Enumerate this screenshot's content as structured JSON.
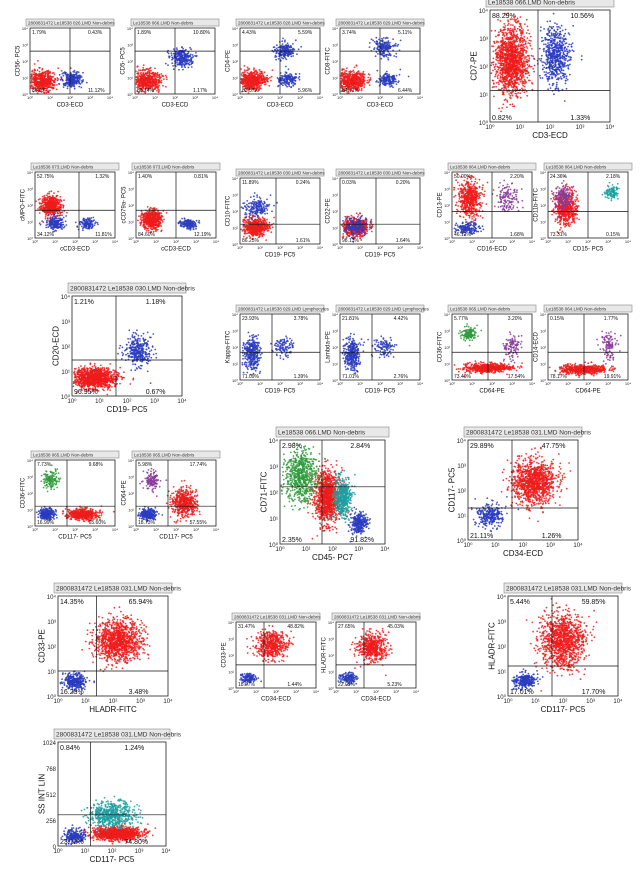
{
  "chart_data": [
    {
      "type": "scatter",
      "title": "2800831472 Le18538 026.LMD  Non-debris",
      "xlabel": "CD3-ECD",
      "ylabel": "CD56- PC5",
      "quadrants": [
        "1.79%",
        "0.43%",
        "86.67%",
        "11.12%"
      ]
    },
    {
      "type": "scatter",
      "title": "Le18538 066.LMD  Non-debris",
      "xlabel": "CD3-ECD",
      "ylabel": "CD5- PC5",
      "quadrants": [
        "1.89%",
        "10.80%",
        "86.14%",
        "1.17%"
      ]
    },
    {
      "type": "scatter",
      "title": "2800831472 Le18538 028.LMD  Non-debris",
      "xlabel": "CD3-ECD",
      "ylabel": "CD4-PE",
      "quadrants": [
        "4.43%",
        "5.59%",
        "83.57%",
        "5.96%"
      ]
    },
    {
      "type": "scatter",
      "title": "2800831472 Le18538 029.LMD  Non-debris",
      "xlabel": "CD3-ECD",
      "ylabel": "CD8-FITC",
      "quadrants": [
        "3.74%",
        "5.11%",
        "84.71%",
        "6.44%"
      ]
    },
    {
      "type": "scatter",
      "title": "Le18538 066.LMD  Non-debris",
      "xlabel": "CD3-ECD",
      "ylabel": "CD7-PE",
      "quadrants": [
        "88.29%",
        "10.56%",
        "0.82%",
        "1.33%"
      ]
    },
    {
      "type": "scatter",
      "title": "Le18538 073.LMD  Non-debris",
      "xlabel": "cCD3-ECD",
      "ylabel": "cMPO-FITC",
      "quadrants": [
        "52.75%",
        "1.32%",
        "34.12%",
        "11.81%"
      ]
    },
    {
      "type": "scatter",
      "title": "Le18538 073.LMD  Non-debris",
      "xlabel": "cCD3-ECD",
      "ylabel": "cCD79a- PC5",
      "quadrants": [
        "1.40%",
        "0.81%",
        "84.60%",
        "12.19%"
      ]
    },
    {
      "type": "scatter",
      "title": "2800831472 Le18538 030.LMD  Non-debris",
      "xlabel": "CD19- PC5",
      "ylabel": "CD10-FITC",
      "quadrants": [
        "11.89%",
        "0.24%",
        "86.25%",
        "1.61%"
      ]
    },
    {
      "type": "scatter",
      "title": "2800831472 Le18538 030.LMD  Non-debris",
      "xlabel": "CD19- PC5",
      "ylabel": "CD22-PE",
      "quadrants": [
        "0.03%",
        "0.20%",
        "98.13%",
        "1.64%"
      ]
    },
    {
      "type": "scatter",
      "title": "Le18538 064.LMD  Non-debris",
      "xlabel": "CD16-ECD",
      "ylabel": "CD13-PE",
      "quadrants": [
        "50.00%",
        "2.20%",
        "46.12%",
        "1.68%"
      ]
    },
    {
      "type": "scatter",
      "title": "Le18538 064.LMD  Non-debris",
      "xlabel": "CD15- PC5",
      "ylabel": "CD11b-FITC",
      "quadrants": [
        "24.36%",
        "2.18%",
        "73.31%",
        "0.15%"
      ]
    },
    {
      "type": "scatter",
      "title": "2800831472 Le18538 030.LMD  Non-debris",
      "xlabel": "CD19- PC5",
      "ylabel": "CD20-ECD",
      "quadrants": [
        "1.21%",
        "1.18%",
        "96.95%",
        "0.67%"
      ]
    },
    {
      "type": "scatter",
      "title": "2800831472 Le18538 029.LMD  Lymphocytes",
      "xlabel": "CD19- PC5",
      "ylabel": "Kappa-FITC",
      "quadrants": [
        "23.93%",
        "3.78%",
        "71.09%",
        "1.39%"
      ]
    },
    {
      "type": "scatter",
      "title": "2800831472 Le18538 029.LMD  Lymphocytes",
      "xlabel": "CD19- PC5",
      "ylabel": "Lambda-PE",
      "quadrants": [
        "21.81%",
        "4.42%",
        "71.01%",
        "2.76%"
      ]
    },
    {
      "type": "scatter",
      "title": "Le18538 065.LMD  Non-debris",
      "xlabel": "CD64-PE",
      "ylabel": "CD36-FITC",
      "quadrants": [
        "5.77%",
        "3.20%",
        "73.49%",
        "17.54%"
      ]
    },
    {
      "type": "scatter",
      "title": "Le18538 064.LMD  Non-debris",
      "xlabel": "CD64-PE",
      "ylabel": "CD14-ECD",
      "quadrants": [
        "0.15%",
        "1.77%",
        "78.17%",
        "19.91%"
      ]
    },
    {
      "type": "scatter",
      "title": "Le18538 065.LMD  Non-debris",
      "xlabel": "CD117- PC5",
      "ylabel": "CD36-FITC",
      "quadrants": [
        "7.73%",
        "9.68%",
        "16.99%",
        "65.60%"
      ]
    },
    {
      "type": "scatter",
      "title": "Le18538 065.LMD  Non-debris",
      "xlabel": "CD117- PC5",
      "ylabel": "CD64-PE",
      "quadrants": [
        "5.98%",
        "17.74%",
        "18.73%",
        "57.55%"
      ]
    },
    {
      "type": "scatter",
      "title": "Le18538 066.LMD  Non-debris",
      "xlabel": "CD45- PC7",
      "ylabel": "CD71-FITC",
      "quadrants": [
        "2.98%",
        "2.84%",
        "2.35%",
        "91.82%"
      ]
    },
    {
      "type": "scatter",
      "title": "2800831472 Le18538 031.LMD  Non-debris",
      "xlabel": "CD34-ECD",
      "ylabel": "CD117- PC5",
      "quadrants": [
        "29.89%",
        "47.75%",
        "21.11%",
        "1.26%"
      ]
    },
    {
      "type": "scatter",
      "title": "2800831472 Le18538 031.LMD  Non-debris",
      "xlabel": "HLADR-FITC",
      "ylabel": "CD33-PE",
      "quadrants": [
        "14.35%",
        "65.94%",
        "16.23%",
        "3.48%"
      ]
    },
    {
      "type": "scatter",
      "title": "2800831472 Le18538 031.LMD  Non-debris",
      "xlabel": "CD34-ECD",
      "ylabel": "CD33-PE",
      "quadrants": [
        "31.47%",
        "48.82%",
        "18.27%",
        "1.44%"
      ]
    },
    {
      "type": "scatter",
      "title": "2800831472 Le18538 031.LMD  Non-debris",
      "xlabel": "CD34-ECD",
      "ylabel": "HLADR-FITC",
      "quadrants": [
        "27.65%",
        "45.03%",
        "22.09%",
        "5.23%"
      ]
    },
    {
      "type": "scatter",
      "title": "2800831472 Le18538 031.LMD  Non-debris",
      "xlabel": "CD117- PC5",
      "ylabel": "HLADR-FITC",
      "quadrants": [
        "5.44%",
        "59.85%",
        "17.01%",
        "17.70%"
      ]
    },
    {
      "type": "scatter",
      "title": "2800831472 Le18538 031.LMD  Non-debris",
      "xlabel": "CD117- PC5",
      "ylabel": "SS INT LIN",
      "quadrants": [
        "0.84%",
        "1.24%",
        "23.12%",
        "74.80%"
      ],
      "yticks": [
        "0",
        "256",
        "512",
        "768",
        "1024"
      ]
    }
  ],
  "logticks": [
    "10⁰",
    "10¹",
    "10²",
    "10³",
    "10⁴"
  ],
  "colors": {
    "red": "#ee1c1c",
    "blue": "#2a3cc0",
    "green": "#2e9b3a",
    "teal": "#1aa0a0",
    "purple": "#8a3a9a"
  }
}
